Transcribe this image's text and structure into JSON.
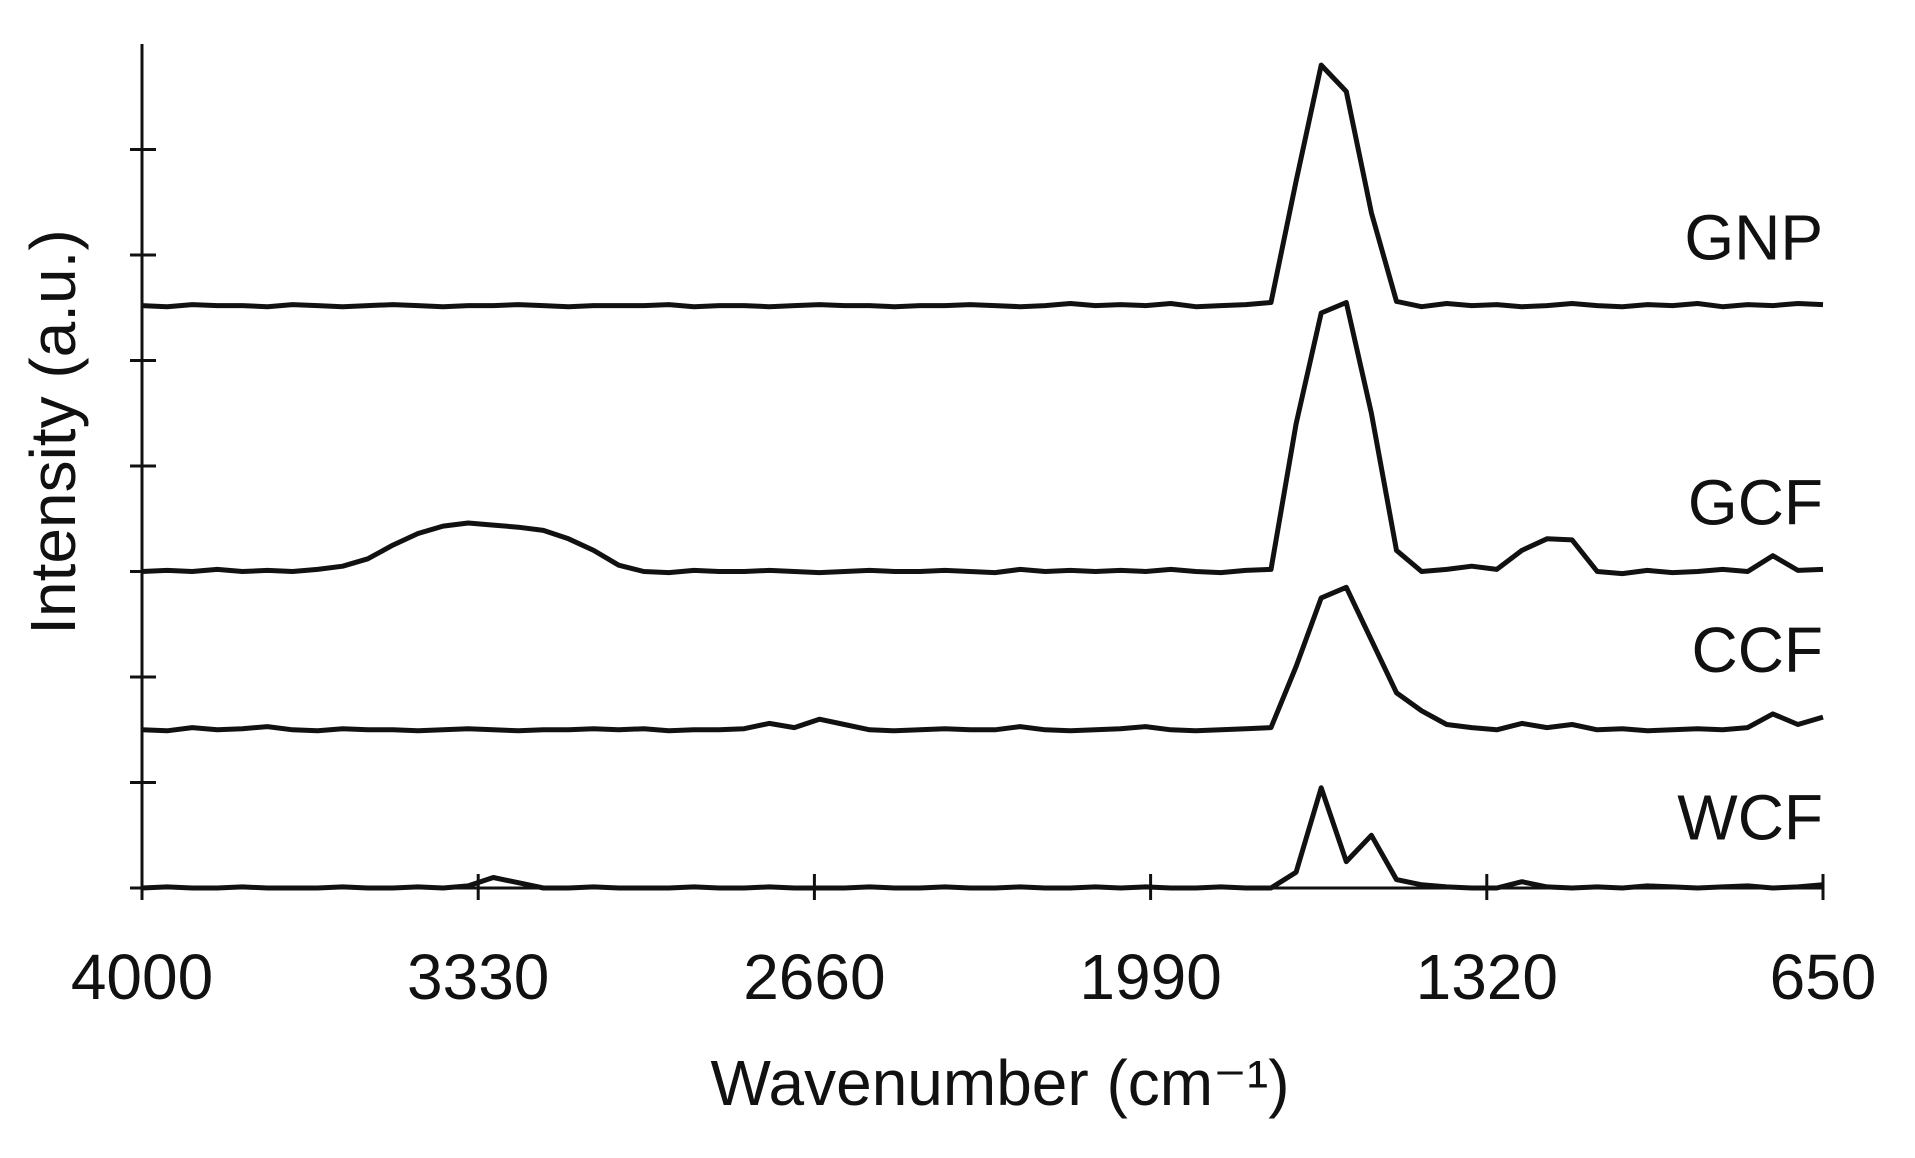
{
  "chart_data": {
    "type": "line",
    "xlabel": "Wavenumber (cm⁻¹)",
    "ylabel": "Intensity (a.u.)",
    "x": [
      4000,
      3950,
      3900,
      3850,
      3800,
      3750,
      3700,
      3650,
      3600,
      3550,
      3500,
      3450,
      3400,
      3350,
      3300,
      3250,
      3200,
      3150,
      3100,
      3050,
      3000,
      2950,
      2900,
      2850,
      2800,
      2750,
      2700,
      2650,
      2600,
      2550,
      2500,
      2450,
      2400,
      2350,
      2300,
      2250,
      2200,
      2150,
      2100,
      2050,
      2000,
      1950,
      1900,
      1850,
      1800,
      1750,
      1700,
      1650,
      1600,
      1550,
      1500,
      1450,
      1400,
      1350,
      1300,
      1250,
      1200,
      1150,
      1100,
      1050,
      1000,
      950,
      900,
      850,
      800,
      750,
      700,
      650
    ],
    "xlim": [
      4000,
      650
    ],
    "xticks": [
      4000,
      3330,
      2660,
      1990,
      1320,
      650
    ],
    "ylim": [
      0,
      8
    ],
    "yticks": [
      0,
      1,
      2,
      3,
      4,
      5,
      6,
      7
    ],
    "series": [
      {
        "name": "GNP",
        "color": "#111111",
        "values": [
          5.52,
          5.51,
          5.53,
          5.52,
          5.52,
          5.51,
          5.53,
          5.52,
          5.51,
          5.52,
          5.53,
          5.52,
          5.51,
          5.52,
          5.52,
          5.53,
          5.52,
          5.51,
          5.52,
          5.52,
          5.52,
          5.53,
          5.51,
          5.52,
          5.52,
          5.51,
          5.52,
          5.53,
          5.52,
          5.52,
          5.51,
          5.52,
          5.52,
          5.53,
          5.52,
          5.51,
          5.52,
          5.54,
          5.52,
          5.53,
          5.52,
          5.54,
          5.51,
          5.52,
          5.53,
          5.55,
          6.7,
          7.8,
          7.55,
          6.4,
          5.56,
          5.51,
          5.54,
          5.52,
          5.53,
          5.51,
          5.52,
          5.54,
          5.52,
          5.51,
          5.53,
          5.52,
          5.54,
          5.51,
          5.53,
          5.52,
          5.54,
          5.53
        ]
      },
      {
        "name": "GCF",
        "color": "#111111",
        "values": [
          3.0,
          3.01,
          3.0,
          3.02,
          3.0,
          3.01,
          3.0,
          3.02,
          3.05,
          3.12,
          3.25,
          3.36,
          3.43,
          3.46,
          3.44,
          3.42,
          3.39,
          3.31,
          3.2,
          3.06,
          3.0,
          2.99,
          3.01,
          3.0,
          3.0,
          3.01,
          3.0,
          2.99,
          3.0,
          3.01,
          3.0,
          3.0,
          3.01,
          3.0,
          2.99,
          3.02,
          3.0,
          3.01,
          3.0,
          3.01,
          3.0,
          3.02,
          3.0,
          2.99,
          3.01,
          3.02,
          4.4,
          5.45,
          5.55,
          4.5,
          3.2,
          3.0,
          3.02,
          3.05,
          3.02,
          3.2,
          3.31,
          3.3,
          3.0,
          2.98,
          3.01,
          2.99,
          3.0,
          3.02,
          3.0,
          3.15,
          3.01,
          3.02
        ]
      },
      {
        "name": "CCF",
        "color": "#111111",
        "values": [
          1.5,
          1.49,
          1.52,
          1.5,
          1.51,
          1.53,
          1.5,
          1.49,
          1.51,
          1.5,
          1.5,
          1.49,
          1.5,
          1.51,
          1.5,
          1.49,
          1.5,
          1.5,
          1.51,
          1.5,
          1.51,
          1.49,
          1.5,
          1.5,
          1.51,
          1.56,
          1.52,
          1.6,
          1.55,
          1.5,
          1.49,
          1.5,
          1.51,
          1.5,
          1.5,
          1.53,
          1.5,
          1.49,
          1.5,
          1.51,
          1.53,
          1.5,
          1.49,
          1.5,
          1.51,
          1.52,
          2.1,
          2.75,
          2.85,
          2.35,
          1.85,
          1.68,
          1.55,
          1.52,
          1.5,
          1.56,
          1.52,
          1.55,
          1.5,
          1.51,
          1.49,
          1.5,
          1.51,
          1.5,
          1.52,
          1.65,
          1.55,
          1.62
        ]
      },
      {
        "name": "WCF",
        "color": "#111111",
        "values": [
          0,
          0.01,
          0,
          0,
          0.01,
          0,
          0,
          0,
          0.01,
          0,
          0,
          0.01,
          0,
          0.02,
          0.1,
          0.05,
          0,
          0,
          0.01,
          0,
          0,
          0,
          0.01,
          0,
          0,
          0.01,
          0,
          0,
          0,
          0.01,
          0,
          0,
          0.01,
          0,
          0,
          0.01,
          0,
          0,
          0.01,
          0,
          0.01,
          0,
          0,
          0.01,
          0,
          0,
          0.15,
          0.95,
          0.25,
          0.5,
          0.08,
          0.03,
          0.01,
          0,
          0,
          0.06,
          0.01,
          0,
          0.01,
          0,
          0.02,
          0.01,
          0,
          0.01,
          0.02,
          0,
          0.01,
          0.03
        ]
      }
    ]
  }
}
